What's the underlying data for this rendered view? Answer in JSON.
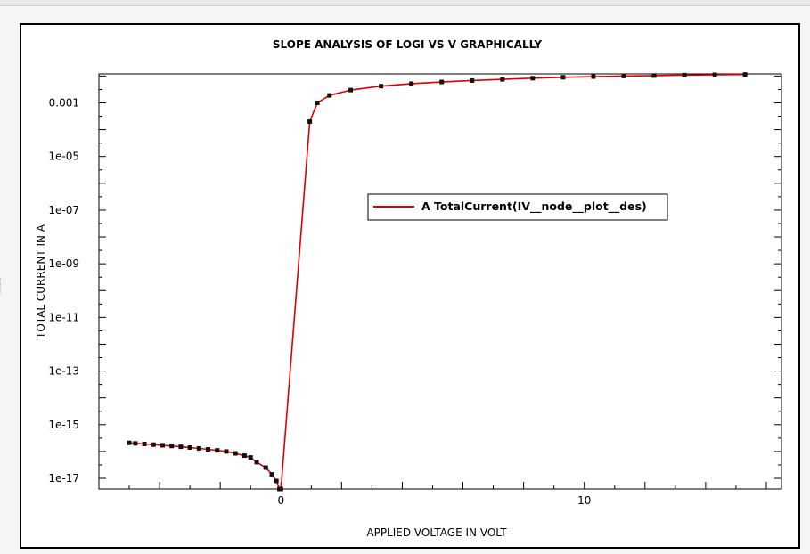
{
  "chart_data": {
    "type": "line",
    "title": "SLOPE ANALYSIS OF LOGI VS V GRAPHICALLY",
    "xlabel": "APPLIED VOLTAGE IN VOLT",
    "ylabel": "TOTAL CURRENT IN A",
    "xscale": "linear",
    "yscale": "log",
    "xlim": [
      -6,
      16.5
    ],
    "ylim": [
      4e-18,
      0.012
    ],
    "x_ticks": [
      {
        "value": 0,
        "label": "0"
      },
      {
        "value": 10,
        "label": "10"
      }
    ],
    "y_ticks": [
      {
        "value": 0.001,
        "label": "0.001"
      },
      {
        "value": 1e-05,
        "label": "1e-05"
      },
      {
        "value": 1e-07,
        "label": "1e-07"
      },
      {
        "value": 1e-09,
        "label": "1e-09"
      },
      {
        "value": 1e-11,
        "label": "1e-11"
      },
      {
        "value": 1e-13,
        "label": "1e-13"
      },
      {
        "value": 1e-15,
        "label": "1e-15"
      },
      {
        "value": 1e-17,
        "label": "1e-17"
      }
    ],
    "grid": false,
    "legend_position": "center-right",
    "series": [
      {
        "name": "A TotalCurrent(IV__node__plot__des)",
        "color": "#dd0000",
        "marker_color": "#111111",
        "x": [
          -5,
          -4.8,
          -4.5,
          -4.2,
          -3.9,
          -3.6,
          -3.3,
          -3.0,
          -2.7,
          -2.4,
          -2.1,
          -1.8,
          -1.5,
          -1.2,
          -1.0,
          -0.8,
          -0.5,
          -0.3,
          -0.15,
          -0.05,
          0,
          0.95,
          1.2,
          1.6,
          2.3,
          3.3,
          4.3,
          5.3,
          6.3,
          7.3,
          8.3,
          9.3,
          10.3,
          11.3,
          12.3,
          13.3,
          14.3,
          15.3
        ],
        "y": [
          2.1e-16,
          2e-16,
          1.9e-16,
          1.8e-16,
          1.7e-16,
          1.6e-16,
          1.5e-16,
          1.4e-16,
          1.3e-16,
          1.2e-16,
          1.1e-16,
          1e-16,
          8.5e-17,
          7e-17,
          6e-17,
          4e-17,
          2.5e-17,
          1.4e-17,
          8e-18,
          4e-18,
          6e-19,
          0.0002,
          0.001,
          0.0019,
          0.003,
          0.0042,
          0.0052,
          0.006,
          0.0068,
          0.0075,
          0.0083,
          0.009,
          0.0095,
          0.01,
          0.0104,
          0.0108,
          0.0111,
          0.0114
        ]
      }
    ]
  }
}
